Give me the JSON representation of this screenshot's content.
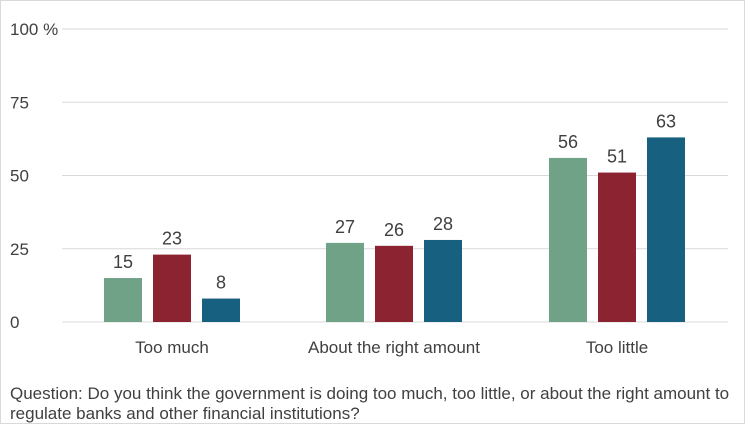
{
  "chart_data": {
    "type": "bar",
    "categories": [
      "Too much",
      "About the right amount",
      "Too little"
    ],
    "series": [
      {
        "values": [
          15,
          27,
          56
        ],
        "color": "#70a288"
      },
      {
        "values": [
          23,
          26,
          51
        ],
        "color": "#8b2331"
      },
      {
        "values": [
          8,
          28,
          63
        ],
        "color": "#17607f"
      }
    ],
    "y_ticks": [
      "0",
      "25",
      "50",
      "75",
      "100 %"
    ],
    "y_tick_values": [
      0,
      25,
      50,
      75,
      100
    ],
    "ylim": [
      0,
      100
    ],
    "grid": true,
    "data_labels": true,
    "gridline_color": "#d9d9d9",
    "text_color": "#404040"
  },
  "question": "Question: Do you think the government is doing too much, too little, or about the right amount to regulate banks and other financial institutions?"
}
